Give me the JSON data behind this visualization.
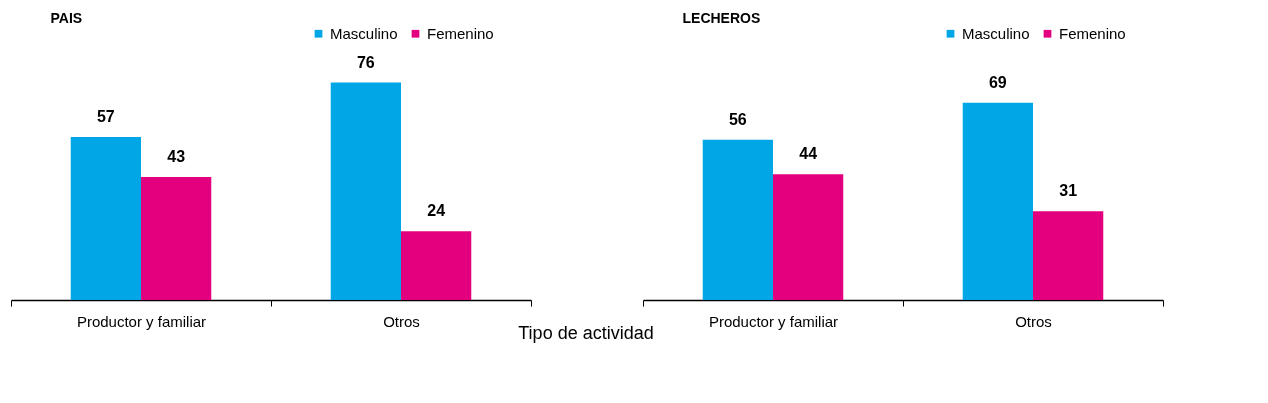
{
  "chart_data": [
    {
      "type": "bar",
      "title": "PAIS",
      "xlabel": "Tipo de actividad",
      "categories": [
        "Productor y familiar",
        "Otros"
      ],
      "data_labels": true,
      "legend": "top right",
      "series": [
        {
          "name": "Masculino",
          "color": "#00a6e6",
          "values": [
            57,
            76
          ]
        },
        {
          "name": "Femenino",
          "color": "#e3007f",
          "values": [
            43,
            24
          ]
        }
      ]
    },
    {
      "type": "bar",
      "title": "LECHEROS",
      "categories": [
        "Productor y familiar",
        "Otros"
      ],
      "data_labels": true,
      "legend": "top right",
      "series": [
        {
          "name": "Masculino",
          "color": "#00a6e6",
          "values": [
            56,
            69
          ]
        },
        {
          "name": "Femenino",
          "color": "#e3007f",
          "values": [
            44,
            31
          ]
        }
      ]
    }
  ]
}
